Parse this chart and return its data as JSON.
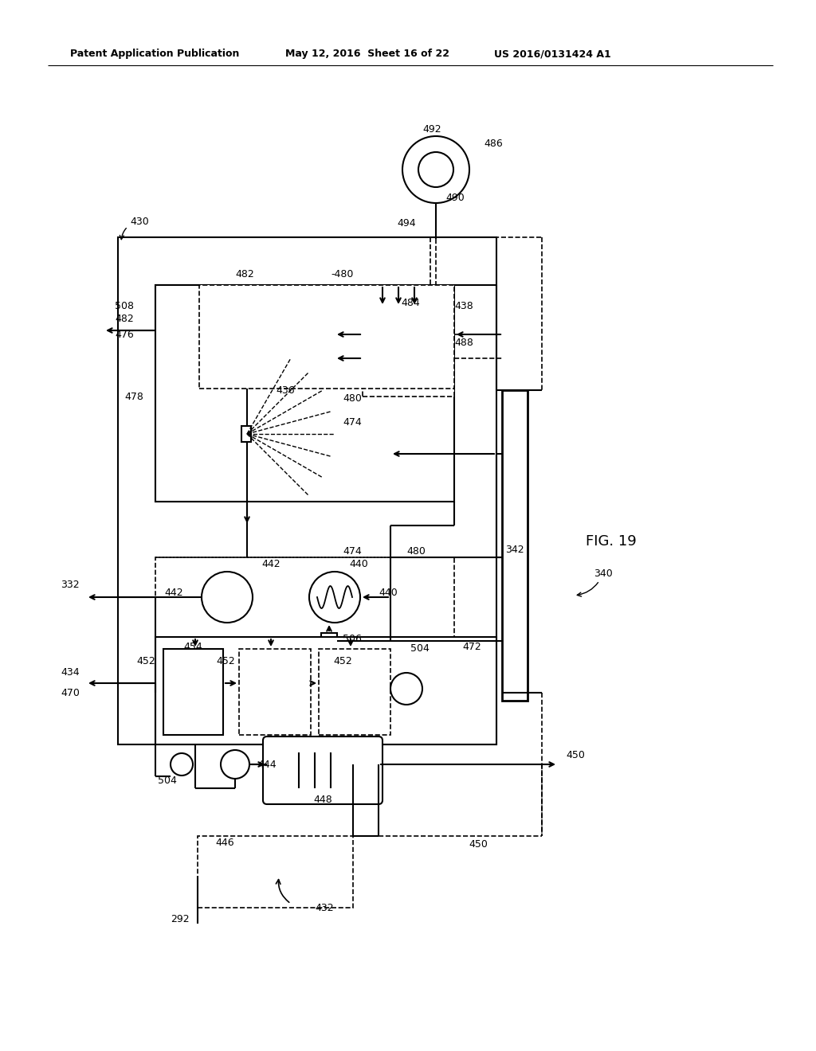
{
  "bg_color": "#ffffff",
  "header_text1": "Patent Application Publication",
  "header_text2": "May 12, 2016  Sheet 16 of 22",
  "header_text3": "US 2016/0131424 A1"
}
